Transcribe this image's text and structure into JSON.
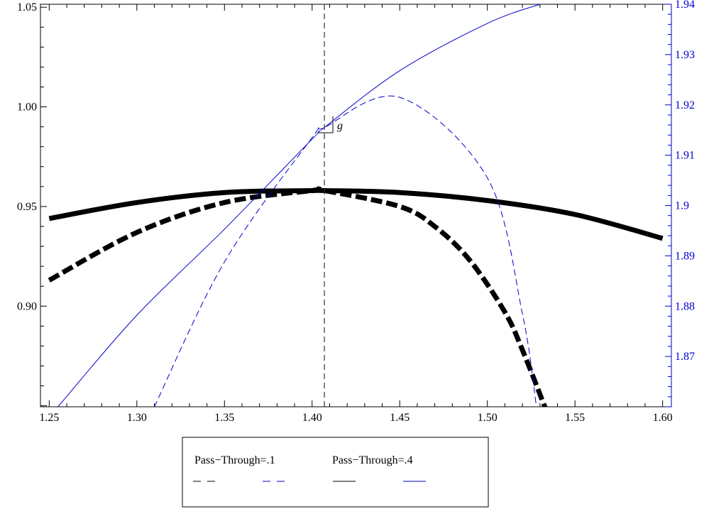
{
  "chart_data": {
    "type": "line",
    "title": "",
    "xlabel": "",
    "ylabel_left": "",
    "ylabel_right": "",
    "xlim": [
      1.245,
      1.605
    ],
    "ylim_left": [
      0.8495,
      1.0515
    ],
    "ylim_right": [
      1.86,
      1.94
    ],
    "xticks": [
      "1.25",
      "1.30",
      "1.35",
      "1.40",
      "1.45",
      "1.50",
      "1.55",
      "1.60"
    ],
    "yticks_left": [
      "0.90",
      "0.95",
      "1.00",
      "1.05"
    ],
    "yticks_right": [
      "1.87",
      "1.88",
      "1.89",
      "1.9",
      "1.91",
      "1.92",
      "1.93",
      "1.94"
    ],
    "right_axis_color": "#0000cc",
    "grid": false,
    "annotations": [
      {
        "text": "g",
        "x": 1.407,
        "y_left": 0.987
      }
    ],
    "vertical_line": {
      "x": 1.407
    },
    "legend": {
      "placement": "bottom-center",
      "headers": [
        "Pass−Through=.1",
        "Pass−Through=.4"
      ],
      "entries": [
        {
          "axis": "left",
          "style": "dashed",
          "color": "#000000"
        },
        {
          "axis": "right",
          "style": "dashed",
          "color": "#0000cc"
        },
        {
          "axis": "left",
          "style": "solid",
          "color": "#000000"
        },
        {
          "axis": "right",
          "style": "solid",
          "color": "#0000cc"
        }
      ]
    },
    "series": [
      {
        "axis": "left",
        "color": "#000000",
        "style": "solid",
        "width": "thick",
        "x": [
          1.25,
          1.3,
          1.35,
          1.4,
          1.407,
          1.45,
          1.5,
          1.55,
          1.6
        ],
        "y": [
          0.944,
          0.952,
          0.957,
          0.958,
          0.958,
          0.957,
          0.953,
          0.946,
          0.934
        ]
      },
      {
        "axis": "left",
        "color": "#000000",
        "style": "dashed",
        "width": "thick",
        "x": [
          1.25,
          1.3,
          1.35,
          1.4,
          1.407,
          1.45,
          1.47,
          1.49,
          1.51,
          1.52,
          1.533
        ],
        "y": [
          0.913,
          0.937,
          0.952,
          0.958,
          0.958,
          0.95,
          0.94,
          0.923,
          0.897,
          0.878,
          0.849
        ]
      },
      {
        "axis": "right",
        "color": "#0000cc",
        "style": "solid",
        "width": "thin",
        "x": [
          1.255,
          1.3,
          1.35,
          1.4,
          1.407,
          1.45,
          1.5,
          1.53
        ],
        "y": [
          1.86,
          1.8782,
          1.8953,
          1.9132,
          1.9155,
          1.9268,
          1.9362,
          1.94
        ]
      },
      {
        "axis": "right",
        "color": "#0000cc",
        "style": "dashed",
        "width": "thin",
        "x": [
          1.31,
          1.35,
          1.4,
          1.407,
          1.45,
          1.5,
          1.52,
          1.528
        ],
        "y": [
          1.86,
          1.8888,
          1.9135,
          1.9155,
          1.9215,
          1.9055,
          1.8785,
          1.86
        ]
      }
    ]
  }
}
